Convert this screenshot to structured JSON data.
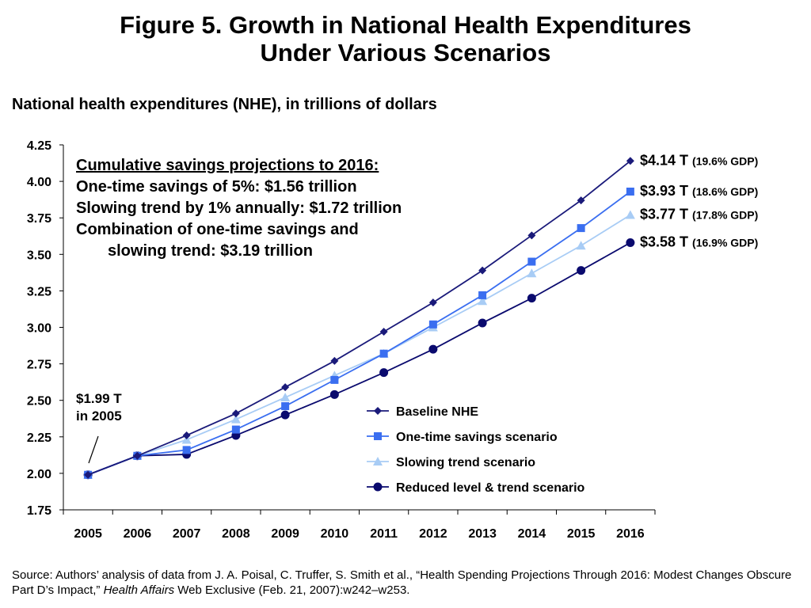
{
  "title_line1": "Figure 5. Growth in National Health Expenditures",
  "title_line2": "Under Various Scenarios",
  "savings_box": {
    "header": "Cumulative savings projections to 2016:",
    "line1": "One-time savings of 5%: $1.56 trillion",
    "line2": "Slowing trend by 1% annually: $1.72 trillion",
    "line3": "Combination of one-time savings and",
    "line4": "slowing trend: $3.19 trillion"
  },
  "annotation": {
    "line1": "$1.99 T",
    "line2": "in 2005"
  },
  "source": {
    "pre": "Source: Authors’ analysis of data from J. A. Poisal, C. Truffer, S. Smith et al., “Health Spending Projections Through 2016: Modest Changes Obscure Part D’s Impact,” ",
    "journal": "Health Affairs",
    "post": " Web Exclusive (Feb. 21, 2007):w242–w253."
  },
  "chart_data": {
    "type": "line",
    "title": "National health expenditures (NHE), in trillions of dollars",
    "x": [
      "2005",
      "2006",
      "2007",
      "2008",
      "2009",
      "2010",
      "2011",
      "2012",
      "2013",
      "2014",
      "2015",
      "2016"
    ],
    "ylim": [
      1.75,
      4.25
    ],
    "yticks": [
      "1.75",
      "2.00",
      "2.25",
      "2.50",
      "2.75",
      "3.00",
      "3.25",
      "3.50",
      "3.75",
      "4.00",
      "4.25"
    ],
    "grid": false,
    "legend_position": "bottom-right",
    "series": [
      {
        "name": "Baseline NHE",
        "color": "#1a1a7a",
        "marker": "diamond",
        "values": [
          1.99,
          2.12,
          2.26,
          2.41,
          2.59,
          2.77,
          2.97,
          3.17,
          3.39,
          3.63,
          3.87,
          4.14
        ],
        "end_label": "$4.14 T",
        "end_gdp": "(19.6% GDP)"
      },
      {
        "name": "One-time savings scenario",
        "color": "#3a6ef0",
        "marker": "square",
        "values": [
          1.99,
          2.12,
          2.16,
          2.3,
          2.46,
          2.64,
          2.82,
          3.02,
          3.22,
          3.45,
          3.68,
          3.93
        ],
        "end_label": "$3.93 T",
        "end_gdp": "(18.6% GDP)"
      },
      {
        "name": "Slowing trend scenario",
        "color": "#a8ccf5",
        "marker": "triangle",
        "values": [
          1.99,
          2.12,
          2.23,
          2.37,
          2.52,
          2.67,
          2.82,
          3.0,
          3.18,
          3.37,
          3.56,
          3.77
        ],
        "end_label": "$3.77 T",
        "end_gdp": "(17.8% GDP)"
      },
      {
        "name": "Reduced level & trend scenario",
        "color": "#0a0a6e",
        "marker": "circle",
        "values": [
          1.99,
          2.12,
          2.13,
          2.26,
          2.4,
          2.54,
          2.69,
          2.85,
          3.03,
          3.2,
          3.39,
          3.58
        ],
        "end_label": "$3.58 T",
        "end_gdp": "(16.9% GDP)"
      }
    ]
  }
}
